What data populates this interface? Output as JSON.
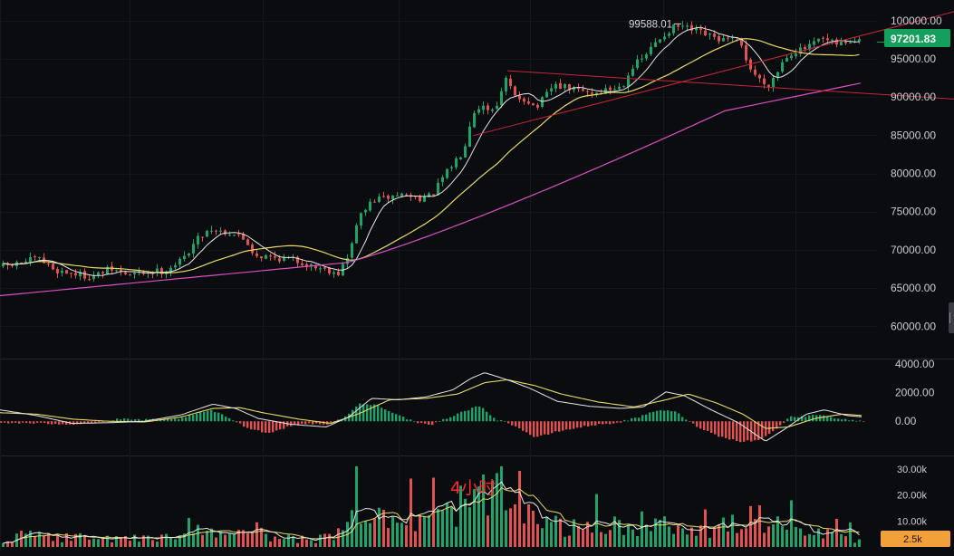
{
  "chart_data": {
    "type": "candlestick",
    "timeframe_label": "4小时",
    "price_axis": {
      "ticks": [
        "100000.00",
        "95000.00",
        "90000.00",
        "85000.00",
        "80000.00",
        "75000.00",
        "70000.00",
        "65000.00",
        "60000.00"
      ],
      "min": 56000,
      "max": 102000
    },
    "last_price": "97201.83",
    "peak_label": "99588.01",
    "peak_value": 99588.01,
    "macd_axis": {
      "ticks": [
        "4000.00",
        "2000.00",
        "0.00"
      ],
      "min": -2200,
      "max": 4000
    },
    "volume_axis": {
      "ticks": [
        "30.00k",
        "20.00k",
        "10.00k"
      ],
      "max": 32000
    },
    "last_volume": "2.5k",
    "colors": {
      "up": "#1fa36b",
      "down": "#e0524f",
      "ma_fast": "#e6e6e6",
      "ma_mid": "#e8d964",
      "ma_slow": "#d94fc2",
      "trendline": "#c2283a",
      "price_tag": "#13a05c",
      "volume_tag": "#f2a03a",
      "text": "#c9ccd2",
      "timeframe": "#ff2a2a"
    },
    "anchors": [
      [
        0,
        67800
      ],
      [
        20,
        68200
      ],
      [
        40,
        68900
      ],
      [
        60,
        67300
      ],
      [
        80,
        66900
      ],
      [
        100,
        66400
      ],
      [
        120,
        67500
      ],
      [
        140,
        66700
      ],
      [
        160,
        67100
      ],
      [
        180,
        67300
      ],
      [
        200,
        68700
      ],
      [
        215,
        71300
      ],
      [
        230,
        72800
      ],
      [
        245,
        72400
      ],
      [
        260,
        72000
      ],
      [
        270,
        71200
      ],
      [
        280,
        69300
      ],
      [
        300,
        69000
      ],
      [
        320,
        68800
      ],
      [
        340,
        68000
      ],
      [
        360,
        67400
      ],
      [
        372,
        67000
      ],
      [
        385,
        69500
      ],
      [
        392,
        73500
      ],
      [
        400,
        75000
      ],
      [
        410,
        76500
      ],
      [
        425,
        76800
      ],
      [
        440,
        77300
      ],
      [
        460,
        76800
      ],
      [
        475,
        77000
      ],
      [
        485,
        79000
      ],
      [
        500,
        81500
      ],
      [
        510,
        83000
      ],
      [
        520,
        88000
      ],
      [
        530,
        89000
      ],
      [
        540,
        88200
      ],
      [
        550,
        89700
      ],
      [
        558,
        92700
      ],
      [
        565,
        90000
      ],
      [
        580,
        89700
      ],
      [
        590,
        88500
      ],
      [
        600,
        90000
      ],
      [
        610,
        91600
      ],
      [
        620,
        91300
      ],
      [
        640,
        90800
      ],
      [
        655,
        90500
      ],
      [
        670,
        91000
      ],
      [
        685,
        91400
      ],
      [
        695,
        93800
      ],
      [
        710,
        95300
      ],
      [
        725,
        97500
      ],
      [
        740,
        99000
      ],
      [
        750,
        99300
      ],
      [
        760,
        98800
      ],
      [
        770,
        98500
      ],
      [
        780,
        98000
      ],
      [
        790,
        97600
      ],
      [
        800,
        97400
      ],
      [
        810,
        97600
      ],
      [
        818,
        96500
      ],
      [
        825,
        94000
      ],
      [
        835,
        92500
      ],
      [
        845,
        91500
      ],
      [
        855,
        93000
      ],
      [
        865,
        95300
      ],
      [
        875,
        96000
      ],
      [
        885,
        96200
      ],
      [
        895,
        96800
      ],
      [
        905,
        97600
      ],
      [
        920,
        96900
      ],
      [
        935,
        97300
      ],
      [
        953,
        97200
      ]
    ],
    "triangle_trendlines": [
      {
        "p1": [
          560,
          93450
        ],
        "p2": [
          1053,
          89750
        ]
      },
      {
        "p1": [
          522,
          84950
        ],
        "p2": [
          1053,
          101180
        ]
      }
    ],
    "macd_hist_anchors": [
      [
        0,
        -100
      ],
      [
        40,
        -150
      ],
      [
        80,
        -200
      ],
      [
        110,
        -50
      ],
      [
        130,
        150
      ],
      [
        160,
        100
      ],
      [
        200,
        200
      ],
      [
        230,
        800
      ],
      [
        250,
        300
      ],
      [
        270,
        -400
      ],
      [
        295,
        -850
      ],
      [
        320,
        -300
      ],
      [
        340,
        -150
      ],
      [
        360,
        -200
      ],
      [
        378,
        200
      ],
      [
        395,
        1200
      ],
      [
        415,
        1150
      ],
      [
        440,
        400
      ],
      [
        460,
        -150
      ],
      [
        475,
        -250
      ],
      [
        495,
        300
      ],
      [
        515,
        800
      ],
      [
        530,
        1100
      ],
      [
        545,
        150
      ],
      [
        560,
        -100
      ],
      [
        575,
        -600
      ],
      [
        590,
        -1150
      ],
      [
        615,
        -700
      ],
      [
        650,
        -300
      ],
      [
        680,
        -100
      ],
      [
        705,
        300
      ],
      [
        725,
        800
      ],
      [
        745,
        650
      ],
      [
        765,
        -250
      ],
      [
        790,
        -1000
      ],
      [
        815,
        -1400
      ],
      [
        835,
        -1350
      ],
      [
        855,
        -600
      ],
      [
        870,
        300
      ],
      [
        890,
        350
      ],
      [
        905,
        500
      ],
      [
        925,
        150
      ],
      [
        953,
        0
      ]
    ],
    "dif_anchors": [
      [
        0,
        800
      ],
      [
        40,
        400
      ],
      [
        80,
        -150
      ],
      [
        120,
        -100
      ],
      [
        160,
        0
      ],
      [
        200,
        450
      ],
      [
        235,
        1200
      ],
      [
        260,
        900
      ],
      [
        285,
        200
      ],
      [
        320,
        -200
      ],
      [
        360,
        -400
      ],
      [
        385,
        300
      ],
      [
        410,
        1600
      ],
      [
        440,
        1500
      ],
      [
        470,
        1700
      ],
      [
        500,
        2200
      ],
      [
        520,
        3000
      ],
      [
        535,
        3400
      ],
      [
        560,
        2900
      ],
      [
        585,
        2300
      ],
      [
        615,
        1400
      ],
      [
        650,
        1050
      ],
      [
        685,
        900
      ],
      [
        710,
        1000
      ],
      [
        735,
        2050
      ],
      [
        755,
        1800
      ],
      [
        785,
        800
      ],
      [
        815,
        -100
      ],
      [
        845,
        -1400
      ],
      [
        865,
        -600
      ],
      [
        890,
        500
      ],
      [
        910,
        800
      ],
      [
        935,
        400
      ],
      [
        953,
        300
      ]
    ],
    "dea_anchors": [
      [
        0,
        600
      ],
      [
        40,
        500
      ],
      [
        80,
        150
      ],
      [
        120,
        0
      ],
      [
        160,
        -50
      ],
      [
        200,
        300
      ],
      [
        235,
        900
      ],
      [
        265,
        950
      ],
      [
        290,
        600
      ],
      [
        330,
        150
      ],
      [
        365,
        -150
      ],
      [
        395,
        500
      ],
      [
        430,
        1500
      ],
      [
        470,
        1600
      ],
      [
        505,
        1900
      ],
      [
        535,
        2700
      ],
      [
        560,
        2900
      ],
      [
        590,
        2500
      ],
      [
        620,
        1900
      ],
      [
        660,
        1350
      ],
      [
        700,
        1000
      ],
      [
        735,
        1500
      ],
      [
        760,
        1900
      ],
      [
        790,
        1300
      ],
      [
        820,
        500
      ],
      [
        845,
        -500
      ],
      [
        870,
        -400
      ],
      [
        900,
        200
      ],
      [
        930,
        500
      ],
      [
        953,
        400
      ]
    ],
    "vol_anchors": [
      [
        0,
        2500
      ],
      [
        30,
        5000
      ],
      [
        60,
        3500
      ],
      [
        90,
        4000
      ],
      [
        120,
        3000
      ],
      [
        150,
        3500
      ],
      [
        180,
        4500
      ],
      [
        210,
        6000
      ],
      [
        235,
        7500
      ],
      [
        260,
        5000
      ],
      [
        285,
        4000
      ],
      [
        310,
        3500
      ],
      [
        340,
        3000
      ],
      [
        370,
        4000
      ],
      [
        390,
        14000
      ],
      [
        405,
        19000
      ],
      [
        425,
        13000
      ],
      [
        450,
        10000
      ],
      [
        480,
        11000
      ],
      [
        500,
        16000
      ],
      [
        520,
        19000
      ],
      [
        540,
        21000
      ],
      [
        560,
        17000
      ],
      [
        580,
        12000
      ],
      [
        610,
        9000
      ],
      [
        640,
        7000
      ],
      [
        670,
        8000
      ],
      [
        700,
        9000
      ],
      [
        730,
        12000
      ],
      [
        750,
        9000
      ],
      [
        780,
        7000
      ],
      [
        810,
        9000
      ],
      [
        830,
        13000
      ],
      [
        850,
        9000
      ],
      [
        880,
        6000
      ],
      [
        910,
        5000
      ],
      [
        940,
        3500
      ],
      [
        953,
        2500
      ]
    ]
  }
}
